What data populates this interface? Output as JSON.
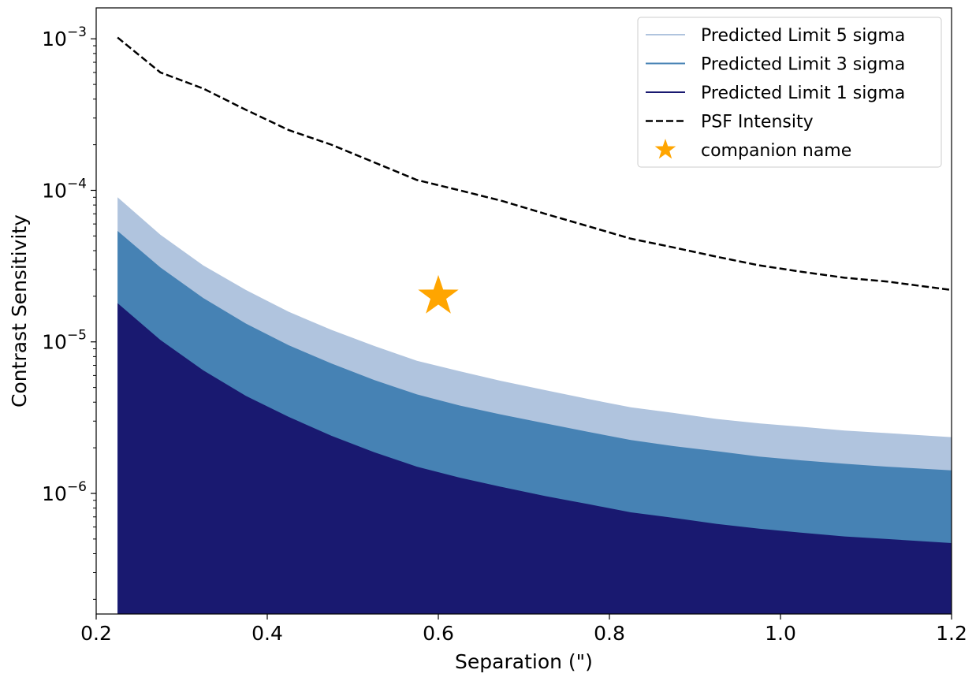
{
  "chart_data": {
    "type": "area",
    "xlabel": "Separation (\")",
    "ylabel": "Contrast Sensitivity",
    "xlim": [
      0.2,
      1.2
    ],
    "ylim": [
      1.6e-07,
      0.0016
    ],
    "yscale": "log",
    "x_ticks": [
      "0.2",
      "0.4",
      "0.6",
      "0.8",
      "1.0",
      "1.2"
    ],
    "y_ticks": [
      {
        "base": "10",
        "exp": "−3",
        "value": 0.001
      },
      {
        "base": "10",
        "exp": "−4",
        "value": 0.0001
      },
      {
        "base": "10",
        "exp": "−5",
        "value": 1e-05
      },
      {
        "base": "10",
        "exp": "−6",
        "value": 1e-06
      }
    ],
    "x": [
      0.225,
      0.275,
      0.325,
      0.375,
      0.425,
      0.475,
      0.525,
      0.575,
      0.625,
      0.675,
      0.725,
      0.775,
      0.825,
      0.875,
      0.925,
      0.975,
      1.025,
      1.075,
      1.125,
      1.2
    ],
    "series": [
      {
        "name": "Predicted Limit 5 sigma",
        "color": "#b0c4de",
        "values": [
          9e-05,
          5.1e-05,
          3.2e-05,
          2.2e-05,
          1.58e-05,
          1.2e-05,
          9.4e-06,
          7.5e-06,
          6.4e-06,
          5.5e-06,
          4.8e-06,
          4.2e-06,
          3.7e-06,
          3.4e-06,
          3.1e-06,
          2.9e-06,
          2.75e-06,
          2.6e-06,
          2.5e-06,
          2.35e-06
        ]
      },
      {
        "name": "Predicted Limit 3 sigma",
        "color": "#4682b4",
        "values": [
          5.4e-05,
          3.1e-05,
          1.95e-05,
          1.32e-05,
          9.5e-06,
          7.2e-06,
          5.6e-06,
          4.5e-06,
          3.8e-06,
          3.3e-06,
          2.9e-06,
          2.55e-06,
          2.25e-06,
          2.05e-06,
          1.9e-06,
          1.75e-06,
          1.65e-06,
          1.57e-06,
          1.5e-06,
          1.42e-06
        ]
      },
      {
        "name": "Predicted Limit 1 sigma",
        "color": "#191970",
        "values": [
          1.8e-05,
          1.03e-05,
          6.5e-06,
          4.4e-06,
          3.2e-06,
          2.4e-06,
          1.87e-06,
          1.5e-06,
          1.27e-06,
          1.1e-06,
          9.6e-07,
          8.5e-07,
          7.5e-07,
          6.9e-07,
          6.3e-07,
          5.85e-07,
          5.5e-07,
          5.2e-07,
          5e-07,
          4.7e-07
        ]
      },
      {
        "name": "PSF Intensity",
        "color": "#000000",
        "style": "dashed",
        "values": [
          0.00102,
          0.0006,
          0.00047,
          0.00034,
          0.00025,
          0.0002,
          0.000153,
          0.000117,
          0.0001,
          8.5e-05,
          7e-05,
          5.8e-05,
          4.8e-05,
          4.2e-05,
          3.65e-05,
          3.2e-05,
          2.9e-05,
          2.65e-05,
          2.5e-05,
          2.2e-05
        ]
      }
    ],
    "points": [
      {
        "name": "companion name",
        "x": 0.6,
        "y": 2e-05,
        "color": "#ffa500",
        "marker": "star"
      }
    ],
    "legend": {
      "placement": "top-right",
      "entries": [
        {
          "label": "Predicted Limit 5 sigma",
          "type": "line",
          "color": "#b0c4de"
        },
        {
          "label": "Predicted Limit 3 sigma",
          "type": "line",
          "color": "#4682b4"
        },
        {
          "label": "Predicted Limit 1 sigma",
          "type": "line",
          "color": "#191970"
        },
        {
          "label": "PSF Intensity",
          "type": "dashed",
          "color": "#000000"
        },
        {
          "label": "companion name",
          "type": "star",
          "color": "#ffa500"
        }
      ]
    },
    "grid": false
  }
}
